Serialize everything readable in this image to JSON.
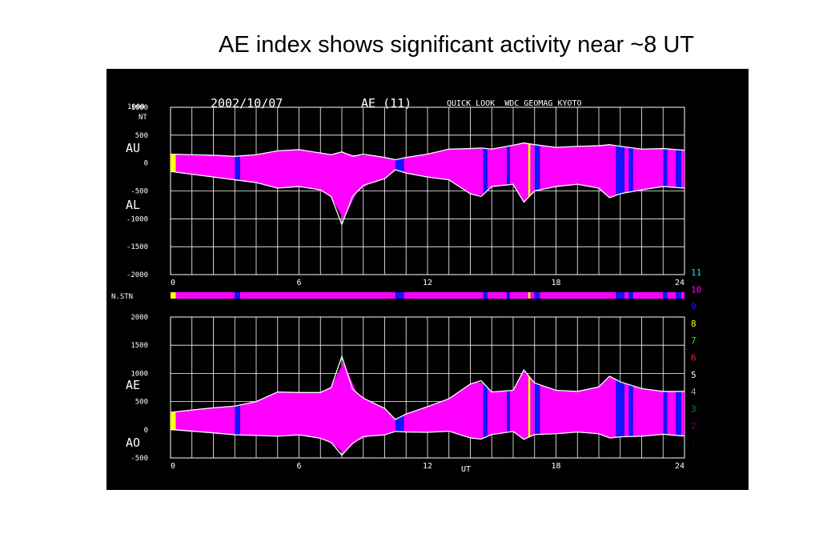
{
  "slide": {
    "title": "AE index shows significant activity near ~8 UT"
  },
  "plot": {
    "date": "2002/10/07",
    "index_label": "AE (11)",
    "source": "QUICK LOOK  WDC GEOMAG KYOTO",
    "upper_panel": {
      "unit_top": "1000",
      "unit": "NT",
      "label_upper": "AU",
      "label_lower": "AL",
      "y_ticks": [
        "1000",
        "500",
        "0",
        "-500",
        "-1000",
        "-1500",
        "-2000"
      ]
    },
    "station_bar": {
      "label": "N.STN"
    },
    "lower_panel": {
      "label_upper": "AE",
      "label_lower": "AO",
      "y_ticks": [
        "2000",
        "1500",
        "1000",
        "500",
        "0",
        "-500"
      ],
      "x_title": "UT"
    },
    "x_ticks": [
      "0",
      "6",
      "12",
      "18",
      "24"
    ],
    "station_legend": [
      {
        "n": "11",
        "color": "#00e0e0"
      },
      {
        "n": "10",
        "color": "#ff00ff"
      },
      {
        "n": "9",
        "color": "#2020ff"
      },
      {
        "n": "8",
        "color": "#ffff00"
      },
      {
        "n": "7",
        "color": "#00ff00"
      },
      {
        "n": "6",
        "color": "#ff2020"
      },
      {
        "n": "5",
        "color": "#ffffff"
      },
      {
        "n": "4",
        "color": "#a0a0a0"
      },
      {
        "n": "3",
        "color": "#008080"
      },
      {
        "n": "2",
        "color": "#800080"
      },
      {
        "n": "1",
        "color": "#000080"
      }
    ],
    "colors": {
      "stations_10": "#ff00ff",
      "stations_9": "#1414ff",
      "stations_8": "#ffff00",
      "stations_11": "#00e0e0",
      "grid": "#ffffff",
      "background": "#000000"
    }
  },
  "chart_data": [
    {
      "type": "area",
      "title": "2002/10/07 AE (11)",
      "ylabel": "NT",
      "xlabel": "",
      "xlim": [
        0,
        24
      ],
      "ylim": [
        -2000,
        1000
      ],
      "series": [
        {
          "name": "AU",
          "x": [
            0,
            1,
            2,
            3,
            4,
            5,
            6,
            7,
            7.5,
            8,
            8.5,
            9,
            10,
            10.5,
            11,
            12,
            13,
            14,
            14.5,
            15,
            16,
            16.5,
            17,
            18,
            19,
            20,
            20.5,
            21,
            22,
            23,
            24
          ],
          "values": [
            160,
            150,
            140,
            120,
            150,
            220,
            240,
            180,
            150,
            200,
            120,
            160,
            100,
            60,
            100,
            160,
            250,
            260,
            270,
            250,
            320,
            360,
            330,
            280,
            300,
            310,
            330,
            300,
            250,
            260,
            230
          ]
        },
        {
          "name": "AL",
          "values": [
            -150,
            -200,
            -250,
            -300,
            -350,
            -450,
            -420,
            -480,
            -600,
            -1100,
            -600,
            -400,
            -280,
            -120,
            -180,
            -250,
            -300,
            -550,
            -600,
            -420,
            -380,
            -700,
            -500,
            -420,
            -380,
            -450,
            -620,
            -550,
            -480,
            -420,
            -450
          ]
        }
      ]
    },
    {
      "type": "area",
      "title": "AE / AO",
      "ylabel": "",
      "xlabel": "UT",
      "xlim": [
        0,
        24
      ],
      "ylim": [
        -500,
        2000
      ],
      "series": [
        {
          "name": "AE",
          "x": [
            0,
            1,
            2,
            3,
            4,
            5,
            6,
            7,
            7.5,
            8,
            8.5,
            9,
            10,
            10.5,
            11,
            12,
            13,
            14,
            14.5,
            15,
            16,
            16.5,
            17,
            18,
            19,
            20,
            20.5,
            21,
            22,
            23,
            24
          ],
          "values": [
            310,
            350,
            390,
            420,
            500,
            670,
            660,
            660,
            750,
            1300,
            720,
            560,
            380,
            180,
            280,
            410,
            550,
            810,
            870,
            670,
            700,
            1060,
            830,
            700,
            680,
            760,
            950,
            850,
            730,
            680,
            680
          ]
        },
        {
          "name": "AO",
          "values": [
            5,
            -25,
            -55,
            -90,
            -100,
            -115,
            -90,
            -150,
            -225,
            -450,
            -240,
            -120,
            -90,
            -30,
            -40,
            -45,
            -25,
            -145,
            -165,
            -85,
            -30,
            -170,
            -85,
            -70,
            -40,
            -70,
            -145,
            -125,
            -115,
            -80,
            -110
          ]
        }
      ],
      "station_count_segments": [
        {
          "from": 0,
          "to": 0.25,
          "stations": 8
        },
        {
          "from": 0.25,
          "to": 3.0,
          "stations": 10
        },
        {
          "from": 3.0,
          "to": 3.25,
          "stations": 9
        },
        {
          "from": 3.25,
          "to": 10.5,
          "stations": 10
        },
        {
          "from": 10.5,
          "to": 10.9,
          "stations": 9
        },
        {
          "from": 10.9,
          "to": 14.6,
          "stations": 10
        },
        {
          "from": 14.6,
          "to": 14.8,
          "stations": 9
        },
        {
          "from": 14.8,
          "to": 15.7,
          "stations": 10
        },
        {
          "from": 15.7,
          "to": 15.85,
          "stations": 9
        },
        {
          "from": 15.85,
          "to": 16.7,
          "stations": 10
        },
        {
          "from": 16.7,
          "to": 16.8,
          "stations": 8
        },
        {
          "from": 16.8,
          "to": 17.0,
          "stations": 10
        },
        {
          "from": 17.0,
          "to": 17.25,
          "stations": 9
        },
        {
          "from": 17.25,
          "to": 20.8,
          "stations": 10
        },
        {
          "from": 20.8,
          "to": 21.2,
          "stations": 9
        },
        {
          "from": 21.2,
          "to": 21.4,
          "stations": 10
        },
        {
          "from": 21.4,
          "to": 21.6,
          "stations": 9
        },
        {
          "from": 21.6,
          "to": 23.0,
          "stations": 10
        },
        {
          "from": 23.0,
          "to": 23.2,
          "stations": 9
        },
        {
          "from": 23.2,
          "to": 23.6,
          "stations": 10
        },
        {
          "from": 23.6,
          "to": 23.85,
          "stations": 9
        },
        {
          "from": 23.85,
          "to": 24,
          "stations": 10
        }
      ]
    }
  ]
}
